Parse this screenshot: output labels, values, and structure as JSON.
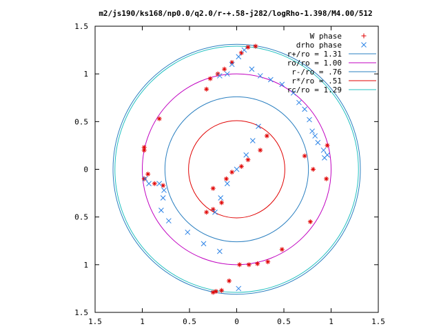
{
  "chart_data": {
    "type": "scatter",
    "title": "m2/js190/ks168/np0.0/q2.0/r-+.58-j282/logRho-1.398/M4.00/512",
    "xlim": [
      -1.5,
      1.5
    ],
    "ylim": [
      -1.5,
      1.5
    ],
    "x_ticks": [
      -1.5,
      -1,
      -0.5,
      0,
      0.5,
      1,
      1.5
    ],
    "y_ticks": [
      -1.5,
      -1,
      -0.5,
      0,
      0.5,
      1,
      1.5
    ],
    "x_tick_labels": [
      "1.5",
      "1",
      "0.5",
      "0",
      "0.5",
      "1",
      "1.5"
    ],
    "y_tick_labels": [
      "1.5",
      "1",
      "0.5",
      "0",
      "0.5",
      "1",
      "1.5"
    ],
    "grid": false,
    "legend_position": "top-right",
    "circles": [
      {
        "name": "r+/ro = 1.31",
        "r": 1.31,
        "color": "#2a7fc0"
      },
      {
        "name": "ro/ro = 1.00",
        "r": 1.0,
        "color": "#c000c0"
      },
      {
        "name": "r-/ro = .76",
        "r": 0.76,
        "color": "#2a7fc0"
      },
      {
        "name": "r*/ro = .51",
        "r": 0.51,
        "color": "#e00000"
      },
      {
        "name": "rc/ro = 1.29",
        "r": 1.29,
        "color": "#20c0c0"
      }
    ],
    "series": [
      {
        "name": "W phase",
        "marker": "plus-star",
        "color": "#e00000",
        "x": [
          -0.32,
          -0.25,
          -0.16,
          -0.25,
          -0.11,
          -0.05,
          0.05,
          0.12,
          0.25,
          0.32,
          -0.98,
          -0.82,
          -0.98,
          -0.94,
          -0.98,
          -0.87,
          -0.78,
          0.72,
          0.81,
          0.95,
          0.96,
          0.78,
          0.48,
          0.33,
          0.22,
          0.13,
          0.03,
          -0.08,
          -0.16,
          -0.22,
          -0.25,
          -0.32,
          -0.28,
          -0.2,
          -0.13,
          -0.05,
          0.05,
          0.12,
          0.2
        ],
        "y": [
          -0.45,
          -0.42,
          -0.35,
          -0.2,
          -0.1,
          -0.03,
          0.03,
          0.1,
          0.2,
          0.35,
          0.23,
          0.53,
          0.2,
          -0.05,
          -0.1,
          -0.15,
          -0.17,
          0.14,
          0.0,
          -0.1,
          0.25,
          -0.55,
          -0.84,
          -0.97,
          -0.99,
          -1.0,
          -1.0,
          -1.17,
          -1.27,
          -1.28,
          -1.29,
          0.84,
          0.95,
          1.0,
          1.05,
          1.12,
          1.22,
          1.28,
          1.29
        ]
      },
      {
        "name": "drho phase",
        "marker": "cross",
        "color": "#2a82e6",
        "x": [
          -0.23,
          -0.17,
          -0.1,
          0,
          0.1,
          0.17,
          0.23,
          -0.97,
          -0.93,
          -0.82,
          -0.77,
          -0.78,
          -0.8,
          -0.72,
          -0.52,
          -0.35,
          -0.18,
          0.02,
          0.6,
          0.66,
          0.72,
          0.77,
          0.8,
          0.83,
          0.86,
          0.92,
          0.96,
          0.93,
          -0.18,
          -0.1,
          -0.05,
          0.02,
          0.08,
          0.16,
          0.25,
          0.36,
          0.48
        ],
        "y": [
          -0.45,
          -0.3,
          -0.15,
          0,
          0.15,
          0.3,
          0.45,
          -0.1,
          -0.15,
          -0.15,
          -0.22,
          -0.3,
          -0.43,
          -0.54,
          -0.66,
          -0.78,
          -0.86,
          -1.25,
          0.8,
          0.7,
          0.63,
          0.52,
          0.4,
          0.35,
          0.28,
          0.2,
          0.15,
          0.12,
          0.98,
          1.0,
          1.1,
          1.18,
          1.25,
          1.05,
          0.98,
          0.94,
          0.89
        ]
      }
    ]
  }
}
